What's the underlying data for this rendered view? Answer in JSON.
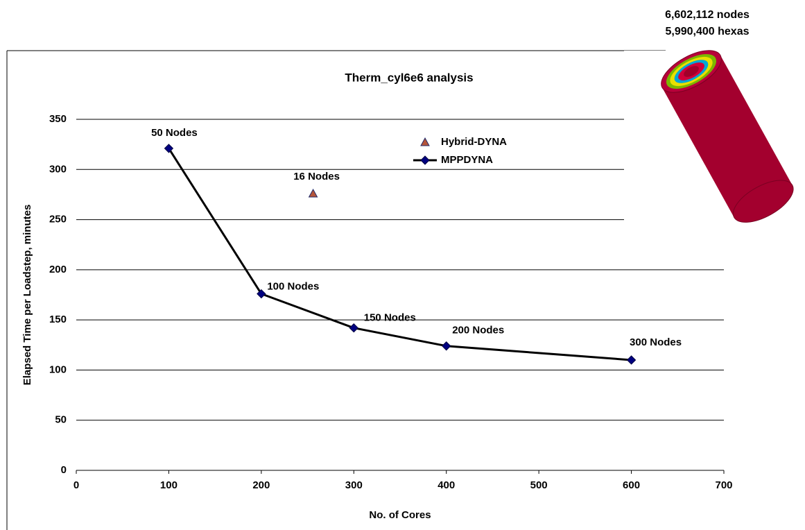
{
  "chart_data": {
    "type": "line",
    "title": "Therm_cyl6e6 analysis",
    "x_label": "No. of Cores",
    "y_label": "Elapsed Time per Loadstep, minutes",
    "xlim": [
      0,
      700
    ],
    "xticks": [
      0,
      100,
      200,
      300,
      400,
      500,
      600,
      700
    ],
    "ylim": [
      0,
      350
    ],
    "yticks": [
      0,
      50,
      100,
      150,
      200,
      250,
      300,
      350
    ],
    "grid": true,
    "series": [
      {
        "name": "Hybrid-DYNA",
        "type": "scatter",
        "marker": "triangle",
        "color": "#b5553a",
        "label_color": "#8b1a1a",
        "x": [
          256
        ],
        "values": [
          276
        ],
        "point_labels": [
          "16 Nodes"
        ]
      },
      {
        "name": "MPPDYNA",
        "type": "line",
        "marker": "diamond",
        "color": "#000000",
        "marker_color": "#000080",
        "label_color": "#000000",
        "x": [
          100,
          200,
          300,
          400,
          600
        ],
        "values": [
          321,
          176,
          142,
          124,
          110
        ],
        "point_labels": [
          "50 Nodes",
          "100 Nodes",
          "150 Nodes",
          "200 Nodes",
          "300 Nodes"
        ]
      }
    ],
    "annotations": [
      "6,602,112 nodes",
      "5,990,400 hexas"
    ]
  }
}
